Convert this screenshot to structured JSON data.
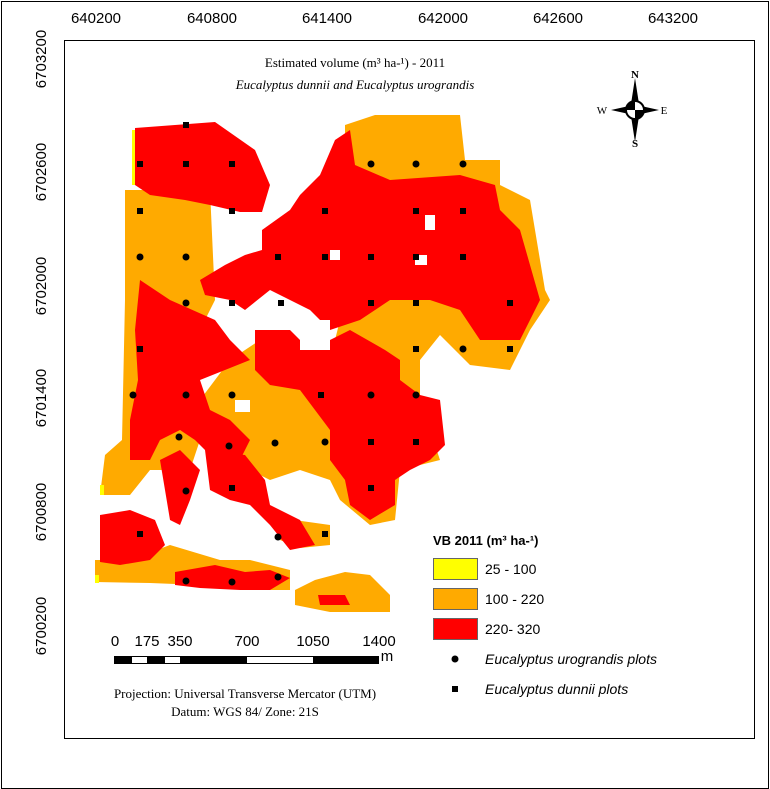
{
  "map": {
    "title": "Estimated volume (m³ ha-¹) - 2011",
    "subtitle": "Eucalyptus dunnii and Eucalyptus urograndis",
    "x_ticks": [
      "640200",
      "640800",
      "641400",
      "642000",
      "642600",
      "643200"
    ],
    "y_ticks": [
      "6703200",
      "6702600",
      "6702000",
      "6701400",
      "6700800",
      "6700200"
    ],
    "north_arrow": {
      "n": "N",
      "s": "S",
      "e": "E",
      "w": "W"
    },
    "colors": {
      "low": "#FFFF00",
      "mid": "#FFAA00",
      "high": "#FF0000"
    }
  },
  "legend": {
    "title": "VB 2011 (m³ ha-¹)",
    "classes": [
      {
        "label": "25 - 100",
        "color": "#FFFF00"
      },
      {
        "label": "100 - 220",
        "color": "#FFAA00"
      },
      {
        "label": "220- 320",
        "color": "#FF0000"
      }
    ],
    "urograndis": "Eucalyptus urograndis plots",
    "dunnii": "Eucalyptus dunnii plots"
  },
  "scale": {
    "labels": [
      "0",
      "175",
      "350",
      "700",
      "1050",
      "1400"
    ],
    "unit": "m"
  },
  "projection": {
    "line1": "Projection: Universal Transverse Mercator (UTM)",
    "line2": "Datum: WGS 84/ Zone: 21S"
  }
}
